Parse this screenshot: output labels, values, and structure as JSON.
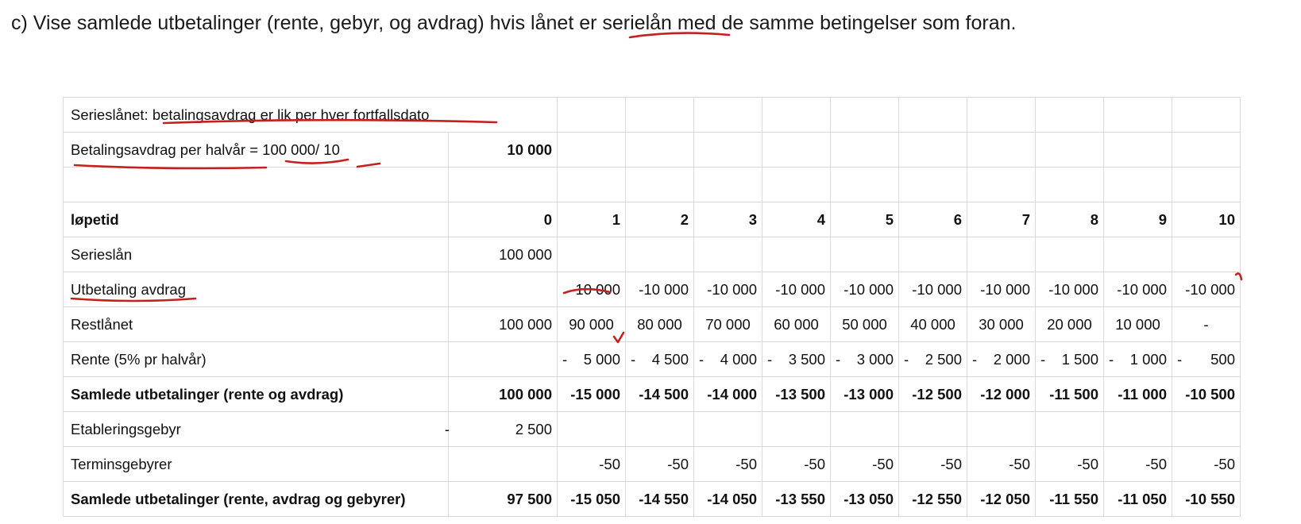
{
  "heading": "c) Vise samlede utbetalinger (rente, gebyr, og avdrag) hvis lånet er serielån med de samme betingelser som foran.",
  "sheet": {
    "note_row": "Serieslånet: betalingsavdrag er lik  per hver fortfallsdato",
    "avdrag_row": {
      "label": "Betalingsavdrag per halvår = 100 000/ 10",
      "value": "10 000"
    },
    "periods_label": "løpetid",
    "periods": [
      "0",
      "1",
      "2",
      "3",
      "4",
      "5",
      "6",
      "7",
      "8",
      "9",
      "10"
    ],
    "rows": [
      {
        "label": "Serieslån",
        "bold": false,
        "prefix": "",
        "values": [
          "100 000",
          "",
          "",
          "",
          "",
          "",
          "",
          "",
          "",
          "",
          ""
        ]
      },
      {
        "label": "Utbetaling avdrag",
        "bold": false,
        "prefix": "",
        "values": [
          "",
          "-10 000",
          "-10 000",
          "-10 000",
          "-10 000",
          "-10 000",
          "-10 000",
          "-10 000",
          "-10 000",
          "-10 000",
          "-10 000"
        ]
      },
      {
        "label": "Restlånet",
        "bold": false,
        "prefix": "",
        "values": [
          "100 000",
          "90 000",
          "80 000",
          "70 000",
          "60 000",
          "50 000",
          "40 000",
          "30 000",
          "20 000",
          "10 000",
          "-"
        ]
      },
      {
        "label": "Rente (5% pr halvår)",
        "bold": false,
        "prefix": "",
        "values": [
          "",
          "5 000",
          "4 500",
          "4 000",
          "3 500",
          "3 000",
          "2 500",
          "2 000",
          "1 500",
          "1 000",
          "500"
        ],
        "negative": true
      },
      {
        "label": "Samlede utbetalinger (rente og avdrag)",
        "bold": true,
        "prefix": "",
        "values": [
          "100 000",
          "-15 000",
          "-14 500",
          "-14 000",
          "-13 500",
          "-13 000",
          "-12 500",
          "-12 000",
          "-11 500",
          "-11 000",
          "-10 500"
        ]
      },
      {
        "label": "Etableringsgebyr",
        "bold": false,
        "prefix": "-",
        "values": [
          "2 500",
          "",
          "",
          "",
          "",
          "",
          "",
          "",
          "",
          "",
          ""
        ]
      },
      {
        "label": "Terminsgebyrer",
        "bold": false,
        "prefix": "",
        "values": [
          "",
          "-50",
          "-50",
          "-50",
          "-50",
          "-50",
          "-50",
          "-50",
          "-50",
          "-50",
          "-50"
        ]
      },
      {
        "label": "Samlede utbetalinger (rente, avdrag og gebyrer)",
        "bold": true,
        "prefix": "",
        "values": [
          "97 500",
          "-15 050",
          "-14 550",
          "-14 050",
          "-13 550",
          "-13 050",
          "-12 550",
          "-12 050",
          "-11 550",
          "-11 050",
          "-10 550"
        ]
      }
    ]
  },
  "colors": {
    "ink": "#c42020",
    "grid": "#d9d9d9",
    "text": "#111111"
  }
}
